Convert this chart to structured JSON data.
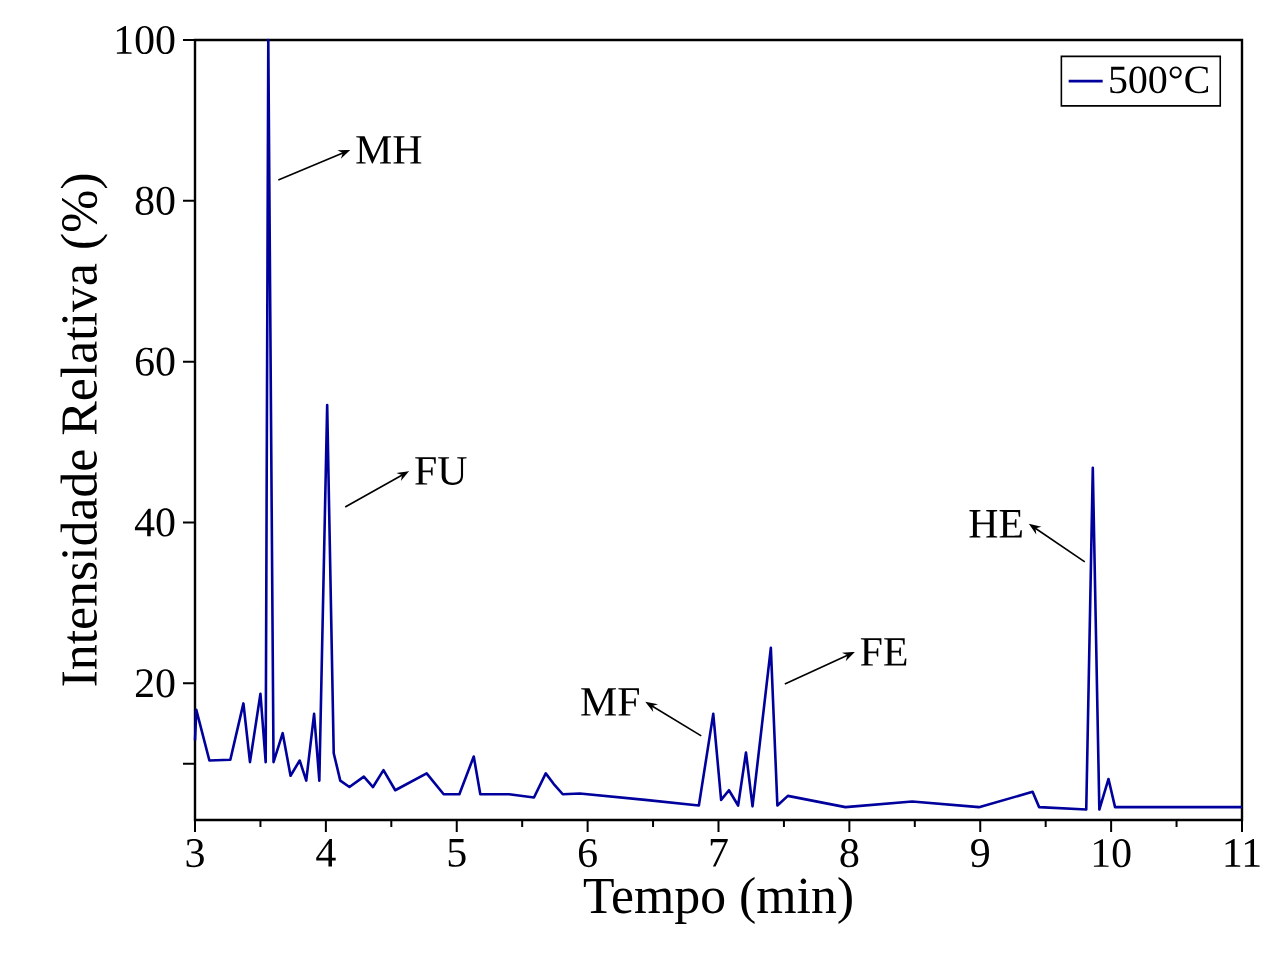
{
  "chart_data": {
    "type": "line",
    "xlabel": "Tempo (min)",
    "ylabel": "Intensidade Relativa (%)",
    "xlim": [
      3,
      11
    ],
    "xticks": [
      3,
      4,
      5,
      6,
      7,
      8,
      9,
      10,
      11
    ],
    "ylim": [
      3,
      100
    ],
    "yticks": [
      {
        "value": 10,
        "label": null
      },
      20,
      40,
      60,
      80,
      100
    ],
    "legend": "top right",
    "grid": false,
    "marker": "none",
    "line_style": "solid",
    "series": [
      {
        "name": "500°C",
        "color": "#00009c",
        "x": [
          3.0,
          3.01,
          3.11,
          3.27,
          3.37,
          3.42,
          3.5,
          3.54,
          3.56,
          3.6,
          3.67,
          3.73,
          3.8,
          3.85,
          3.91,
          3.95,
          4.01,
          4.06,
          4.11,
          4.18,
          4.29,
          4.36,
          4.44,
          4.53,
          4.77,
          4.9,
          5.02,
          5.13,
          5.18,
          5.4,
          5.59,
          5.68,
          5.74,
          5.81,
          5.94,
          6.44,
          6.85,
          6.96,
          7.02,
          7.08,
          7.15,
          7.21,
          7.26,
          7.4,
          7.45,
          7.53,
          7.97,
          8.48,
          8.99,
          9.4,
          9.45,
          9.81,
          9.86,
          9.91,
          9.98,
          10.03,
          10.52,
          11.0
        ],
        "values": [
          12.9,
          16.7,
          10.4,
          10.5,
          17.5,
          10.2,
          18.7,
          10.2,
          100,
          10.2,
          13.8,
          8.5,
          10.4,
          7.9,
          16.2,
          7.9,
          54.6,
          11.3,
          7.9,
          7.1,
          8.4,
          7.1,
          9.2,
          6.7,
          8.8,
          6.2,
          6.2,
          10.9,
          6.2,
          6.2,
          5.8,
          8.8,
          7.5,
          6.2,
          6.3,
          5.5,
          4.8,
          16.2,
          5.5,
          6.7,
          4.8,
          11.4,
          4.7,
          24.4,
          4.8,
          6.0,
          4.6,
          5.3,
          4.6,
          6.5,
          4.6,
          4.3,
          46.8,
          4.3,
          8.1,
          4.6,
          4.6,
          4.6
        ]
      }
    ],
    "annotations": [
      {
        "text": "MH",
        "x": 3.56,
        "y": 82.6
      },
      {
        "text": "FU",
        "x": 4.01,
        "y": 54.6
      },
      {
        "text": "MF",
        "x": 6.96,
        "y": 16.2
      },
      {
        "text": "FE",
        "x": 7.4,
        "y": 24.4
      },
      {
        "text": "HE",
        "x": 9.86,
        "y": 46.8
      }
    ]
  }
}
